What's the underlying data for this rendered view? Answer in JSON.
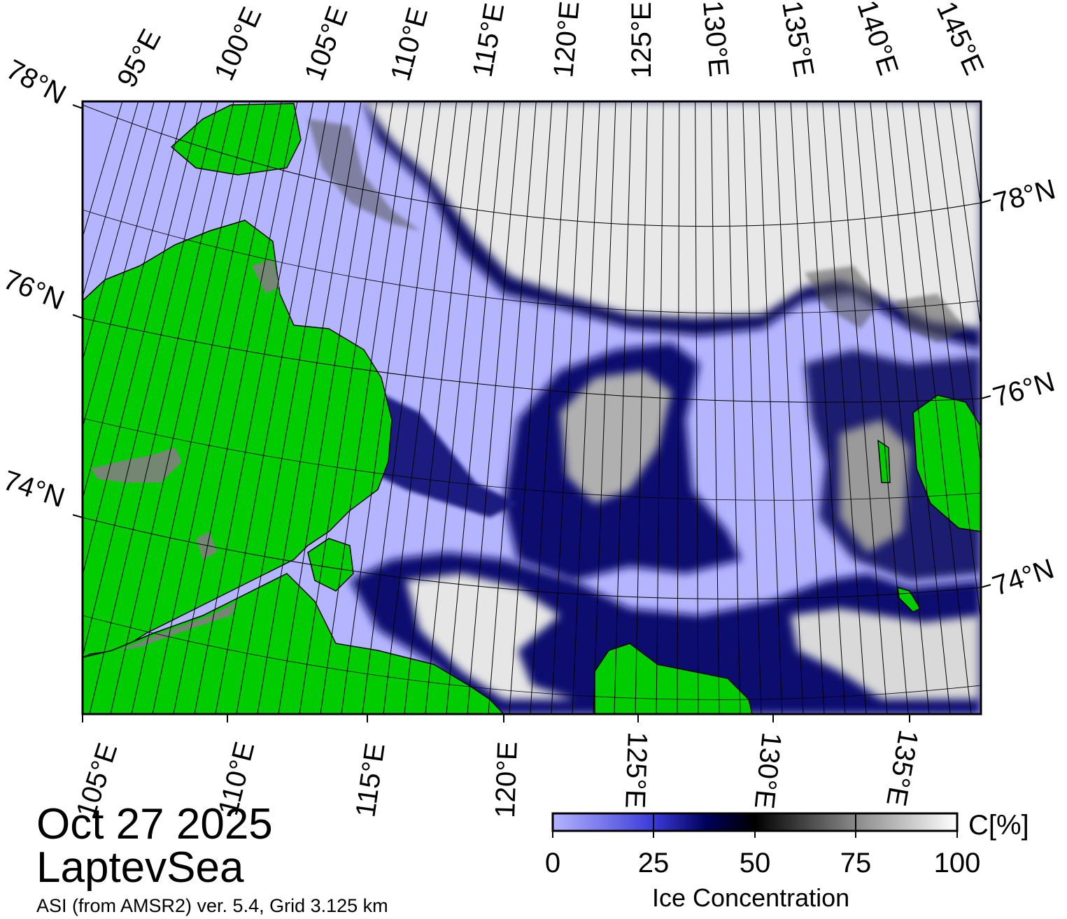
{
  "date": "Oct 27 2025",
  "region": "LaptevSea",
  "source": "ASI (from AMSR2) ver. 5.4,  Grid 3.125 km",
  "colors": {
    "land": "#00cc00",
    "open_water": "#b4b4ff",
    "ice_low": "#00005a",
    "ice_mid": "#000000",
    "ice_high": "#ffffff",
    "coast_mask": "#808080"
  },
  "axes": {
    "top_longitudes": [
      "95°E",
      "100°E",
      "105°E",
      "110°E",
      "115°E",
      "120°E",
      "125°E",
      "130°E",
      "135°E",
      "140°E",
      "145°E"
    ],
    "bottom_longitudes": [
      "105°E",
      "110°E",
      "115°E",
      "120°E",
      "125°E",
      "130°E",
      "135°E"
    ],
    "left_latitudes": [
      "78°N",
      "76°N",
      "74°N"
    ],
    "right_latitudes": [
      "78°N",
      "76°N",
      "74°N"
    ]
  },
  "colorbar": {
    "unit": "C[%]",
    "title": "Ice Concentration",
    "ticks": [
      "0",
      "25",
      "50",
      "75",
      "100"
    ]
  }
}
